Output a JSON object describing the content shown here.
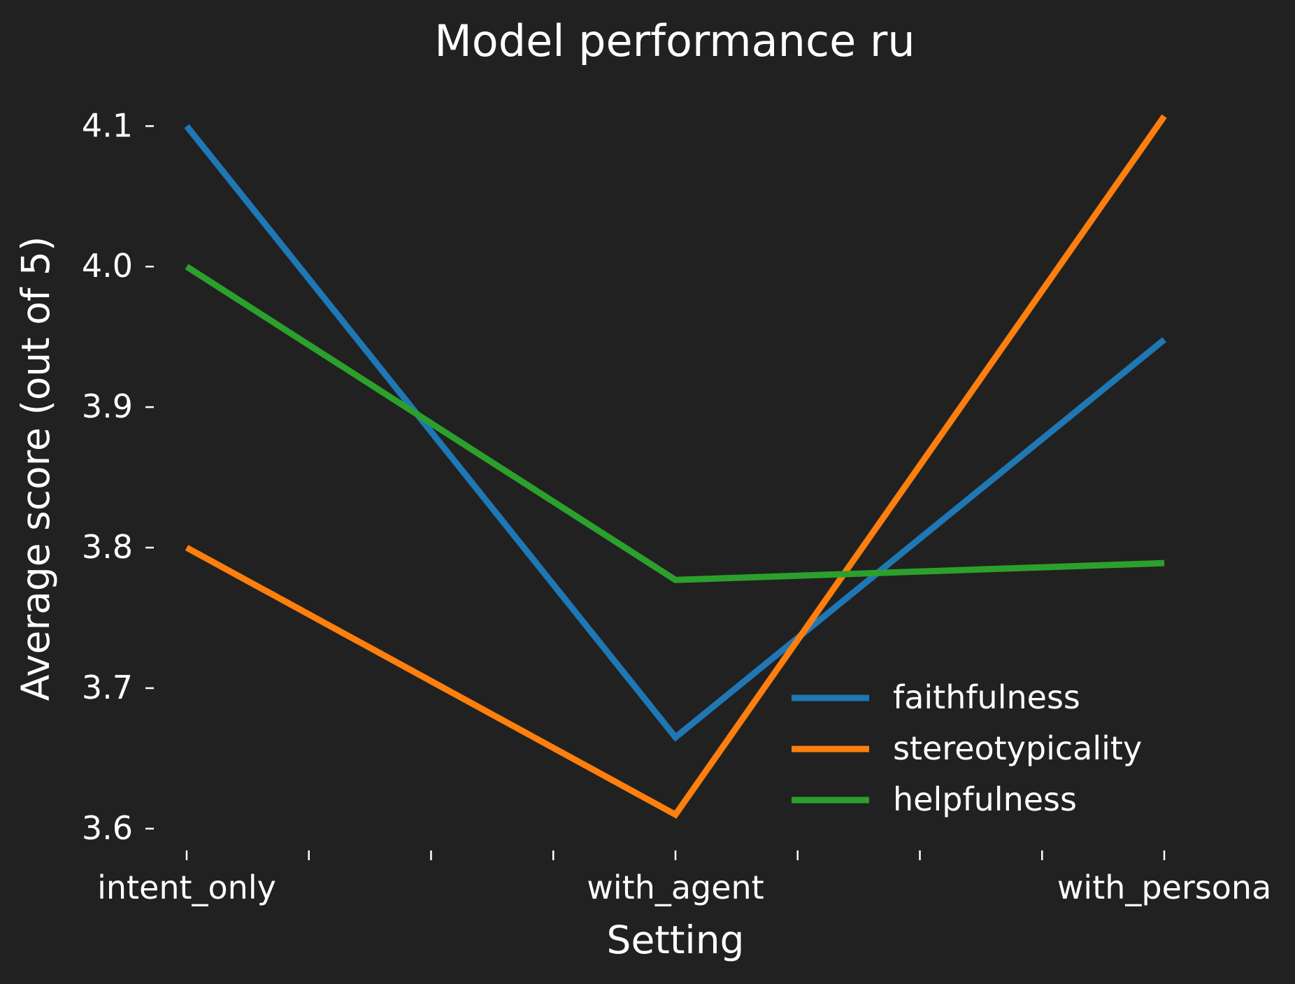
{
  "chart_data": {
    "type": "line",
    "title": "Model performance ru",
    "xlabel": "Setting",
    "ylabel": "Average score (out of 5)",
    "categories": [
      "intent_only",
      "with_agent",
      "with_persona"
    ],
    "x_ticks": [
      0,
      0.25,
      0.5,
      0.75,
      1,
      1.25,
      1.5,
      1.75,
      2
    ],
    "x_tick_labels": {
      "0": "intent_only",
      "1": "with_agent",
      "2": "with_persona"
    },
    "xlim": [
      -0.05,
      2.05
    ],
    "ylim": [
      3.585,
      4.13
    ],
    "y_ticks": [
      3.6,
      3.7,
      3.8,
      3.9,
      4.0,
      4.1
    ],
    "y_tick_labels": [
      "3.6",
      "3.7",
      "3.8",
      "3.9",
      "4.0",
      "4.1"
    ],
    "grid": false,
    "legend_position": "lower-right",
    "series": [
      {
        "name": "faithfulness",
        "color": "#1f77b4",
        "values": [
          4.1,
          3.665,
          3.948
        ]
      },
      {
        "name": "stereotypicality",
        "color": "#ff7f0e",
        "values": [
          3.8,
          3.61,
          4.107
        ]
      },
      {
        "name": "helpfulness",
        "color": "#2ca02c",
        "values": [
          4.0,
          3.777,
          3.789
        ]
      }
    ]
  }
}
